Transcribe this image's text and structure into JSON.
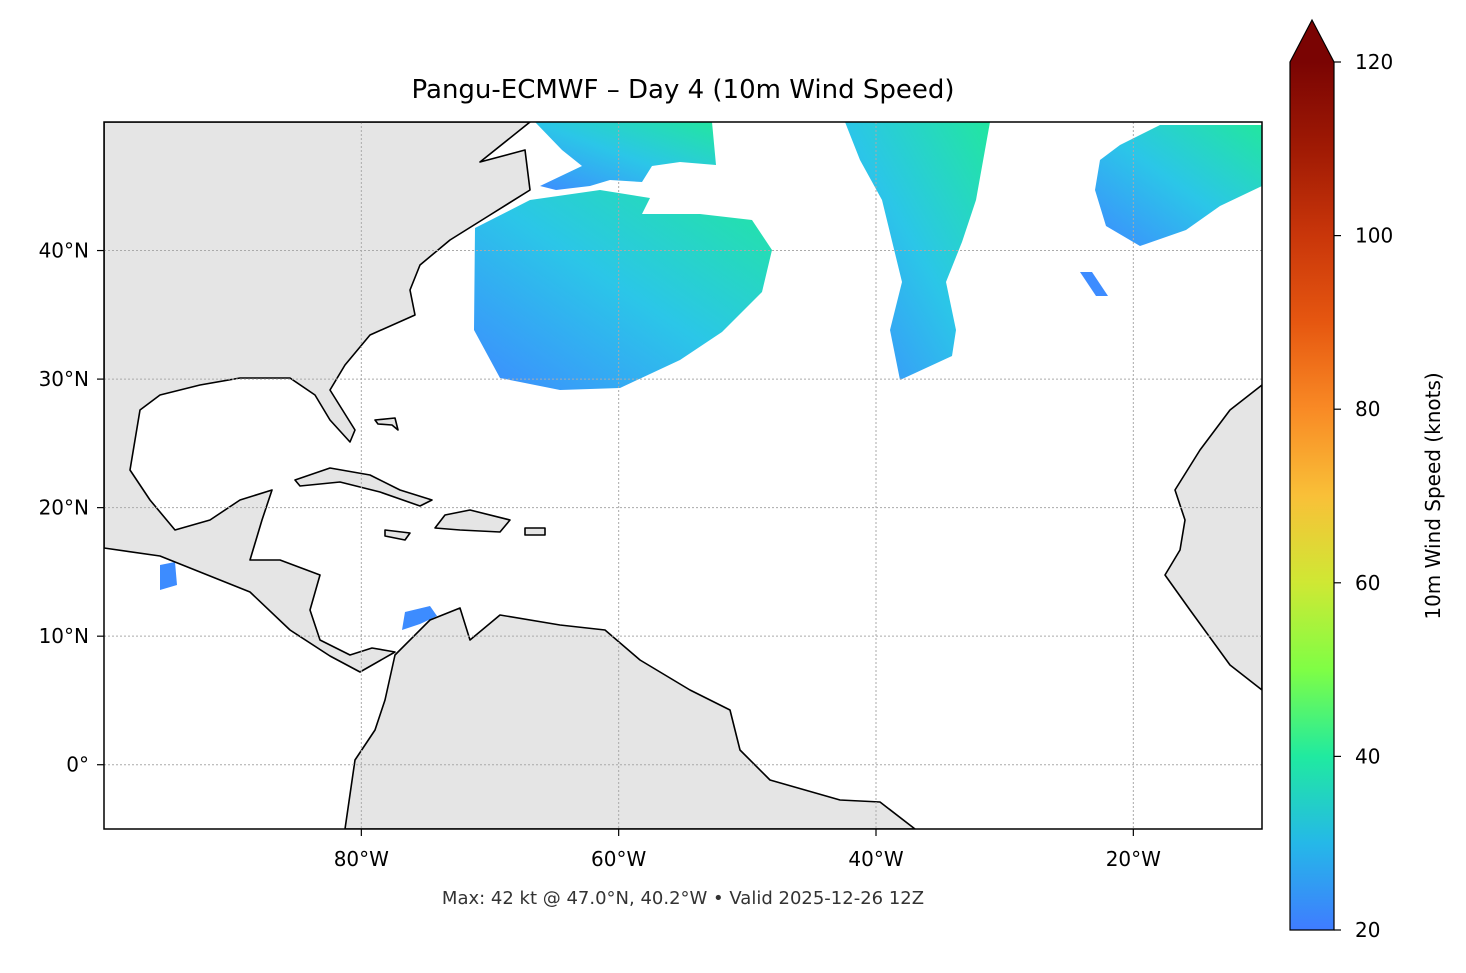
{
  "map": {
    "title": "Pangu-ECMWF – Day 4 (10m Wind Speed)",
    "xlim": [
      -100,
      -10
    ],
    "ylim": [
      -5,
      50
    ],
    "xticks": [
      {
        "value": -80,
        "label": "80°W"
      },
      {
        "value": -60,
        "label": "60°W"
      },
      {
        "value": -40,
        "label": "40°W"
      },
      {
        "value": -20,
        "label": "20°W"
      }
    ],
    "yticks": [
      {
        "value": 0,
        "label": "0°"
      },
      {
        "value": 10,
        "label": "10°N"
      },
      {
        "value": 20,
        "label": "20°N"
      },
      {
        "value": 30,
        "label": "30°N"
      },
      {
        "value": 40,
        "label": "40°N"
      }
    ],
    "grid": true,
    "footer": "Max: 42 kt @ 47.0°N, 40.2°W • Valid 2025-12-26 12Z",
    "colorbar": {
      "label": "10m Wind Speed (knots)",
      "lim": [
        20,
        120
      ],
      "ticks": [
        20,
        40,
        60,
        80,
        100,
        120
      ]
    }
  }
}
